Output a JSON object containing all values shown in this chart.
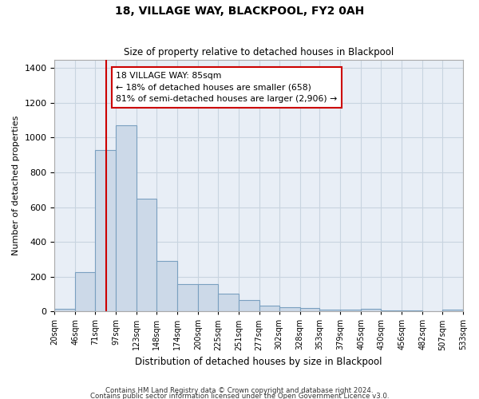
{
  "title": "18, VILLAGE WAY, BLACKPOOL, FY2 0AH",
  "subtitle": "Size of property relative to detached houses in Blackpool",
  "xlabel": "Distribution of detached houses by size in Blackpool",
  "ylabel": "Number of detached properties",
  "footer1": "Contains HM Land Registry data © Crown copyright and database right 2024.",
  "footer2": "Contains public sector information licensed under the Open Government Licence v3.0.",
  "property_size": 85,
  "annotation_line1": "18 VILLAGE WAY: 85sqm",
  "annotation_line2": "← 18% of detached houses are smaller (658)",
  "annotation_line3": "81% of semi-detached houses are larger (2,906) →",
  "bar_color": "#ccd9e8",
  "bar_edge_color": "#7aa0c0",
  "redline_color": "#cc0000",
  "bin_edges": [
    20,
    46,
    71,
    97,
    123,
    148,
    174,
    200,
    225,
    251,
    277,
    302,
    328,
    353,
    379,
    405,
    430,
    456,
    482,
    507,
    533
  ],
  "bar_values": [
    15,
    225,
    930,
    1070,
    650,
    290,
    155,
    155,
    100,
    65,
    35,
    25,
    20,
    12,
    8,
    15,
    5,
    5,
    0,
    8
  ],
  "ylim": [
    0,
    1450
  ],
  "yticks": [
    0,
    200,
    400,
    600,
    800,
    1000,
    1200,
    1400
  ],
  "grid_color": "#c8d4e0",
  "background_color": "#e8eef6"
}
